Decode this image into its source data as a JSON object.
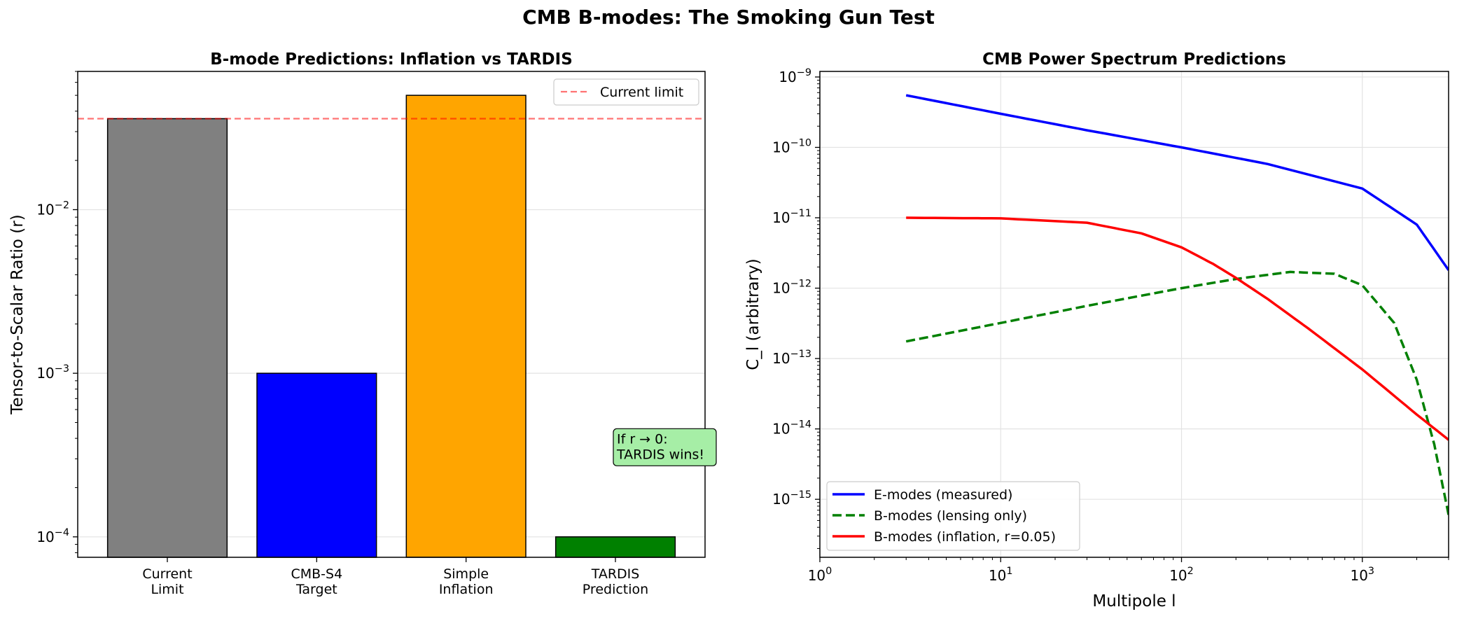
{
  "figure": {
    "suptitle": "CMB B-modes: The Smoking Gun Test"
  },
  "chart_data": [
    {
      "type": "bar",
      "title": "B-mode Predictions: Inflation vs TARDIS",
      "xlabel": "",
      "ylabel": "Tensor-to-Scalar Ratio (r)",
      "yscale": "log",
      "ylim": [
        7.5e-05,
        0.07
      ],
      "yticks": [
        {
          "value": 0.0001,
          "base": "10",
          "exp": "−4"
        },
        {
          "value": 0.001,
          "base": "10",
          "exp": "−3"
        },
        {
          "value": 0.01,
          "base": "10",
          "exp": "−2"
        }
      ],
      "categories": [
        [
          "Current",
          "Limit"
        ],
        [
          "CMB-S4",
          "Target"
        ],
        [
          "Simple",
          "Inflation"
        ],
        [
          "TARDIS",
          "Prediction"
        ]
      ],
      "values": [
        0.036,
        0.001,
        0.05,
        0.0001
      ],
      "colors": [
        "#808080",
        "#0000ff",
        "#ffa500",
        "#008000"
      ],
      "reference_line": {
        "value": 0.036,
        "label": "Current limit",
        "color": "#ff0000",
        "style": "dashed"
      },
      "annotation": {
        "lines": [
          "If r → 0:",
          "TARDIS wins!"
        ],
        "value_y": 0.0003,
        "color": "#a6eea6"
      },
      "legend": {
        "placement": "upper right"
      },
      "grid": "y"
    },
    {
      "type": "line",
      "title": "CMB Power Spectrum Predictions",
      "xlabel": "Multipole l",
      "ylabel": "C_l (arbitrary)",
      "xscale": "log",
      "yscale": "log",
      "xlim": [
        1,
        3000
      ],
      "ylim": [
        1.5e-16,
        1.2e-09
      ],
      "xticks": [
        {
          "value": 1,
          "base": "10",
          "exp": "0"
        },
        {
          "value": 10,
          "base": "10",
          "exp": "1"
        },
        {
          "value": 100,
          "base": "10",
          "exp": "2"
        },
        {
          "value": 1000,
          "base": "10",
          "exp": "3"
        }
      ],
      "yticks": [
        {
          "value": 1e-15,
          "base": "10",
          "exp": "−15"
        },
        {
          "value": 1e-14,
          "base": "10",
          "exp": "−14"
        },
        {
          "value": 1e-13,
          "base": "10",
          "exp": "−13"
        },
        {
          "value": 1e-12,
          "base": "10",
          "exp": "−12"
        },
        {
          "value": 1e-11,
          "base": "10",
          "exp": "−11"
        },
        {
          "value": 1e-10,
          "base": "10",
          "exp": "−10"
        },
        {
          "value": 1e-09,
          "base": "10",
          "exp": "−9"
        }
      ],
      "series": [
        {
          "name": "E-modes (measured)",
          "color": "#0000ff",
          "style": "solid",
          "x": [
            3,
            10,
            30,
            100,
            300,
            1000,
            2000,
            3000
          ],
          "y": [
            5.5e-10,
            3e-10,
            1.75e-10,
            1e-10,
            5.8e-11,
            2.6e-11,
            8e-12,
            1.8e-12
          ]
        },
        {
          "name": "B-modes (lensing only)",
          "color": "#008000",
          "style": "dashed",
          "x": [
            3,
            10,
            30,
            100,
            200,
            400,
            700,
            1000,
            1500,
            2000,
            2500,
            3000
          ],
          "y": [
            1.75e-13,
            3.2e-13,
            5.6e-13,
            1e-12,
            1.35e-12,
            1.7e-12,
            1.6e-12,
            1.1e-12,
            3.2e-13,
            5e-14,
            6e-15,
            6e-16
          ]
        },
        {
          "name": "B-modes (inflation, r=0.05)",
          "color": "#ff0000",
          "style": "solid",
          "x": [
            3,
            10,
            30,
            60,
            100,
            150,
            200,
            300,
            500,
            1000,
            2000,
            3000
          ],
          "y": [
            1e-11,
            9.8e-12,
            8.5e-12,
            6e-12,
            3.8e-12,
            2.2e-12,
            1.4e-12,
            7e-13,
            2.7e-13,
            7e-14,
            1.6e-14,
            7e-15
          ]
        }
      ],
      "legend": {
        "placement": "lower left"
      },
      "grid": "both"
    }
  ]
}
